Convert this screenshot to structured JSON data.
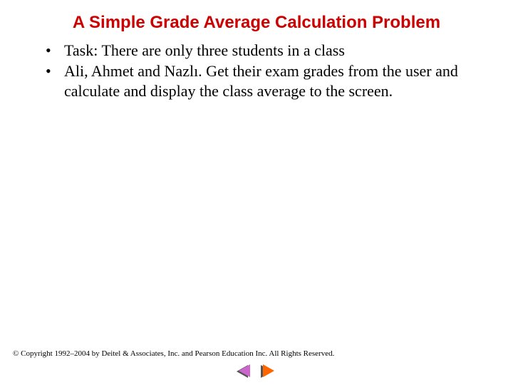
{
  "title": "A Simple Grade Average Calculation Problem",
  "bullets": [
    "Task: There are only three students in a class",
    "Ali, Ahmet and Nazlı. Get their exam grades from the user and calculate and display the class average to the screen."
  ],
  "footer": "© Copyright 1992–2004 by Deitel & Associates, Inc. and Pearson Education Inc. All Rights Reserved.",
  "colors": {
    "title": "#cc0000",
    "body_text": "#000000",
    "background": "#ffffff",
    "nav_prev": "#cc66cc",
    "nav_next": "#ff6600",
    "nav_shadow": "#555555"
  },
  "fonts": {
    "title_family": "Arial",
    "title_size_pt": 18,
    "title_weight": "bold",
    "body_family": "Times New Roman",
    "body_size_pt": 17,
    "footer_size_pt": 8
  },
  "bullet_marker": "•"
}
